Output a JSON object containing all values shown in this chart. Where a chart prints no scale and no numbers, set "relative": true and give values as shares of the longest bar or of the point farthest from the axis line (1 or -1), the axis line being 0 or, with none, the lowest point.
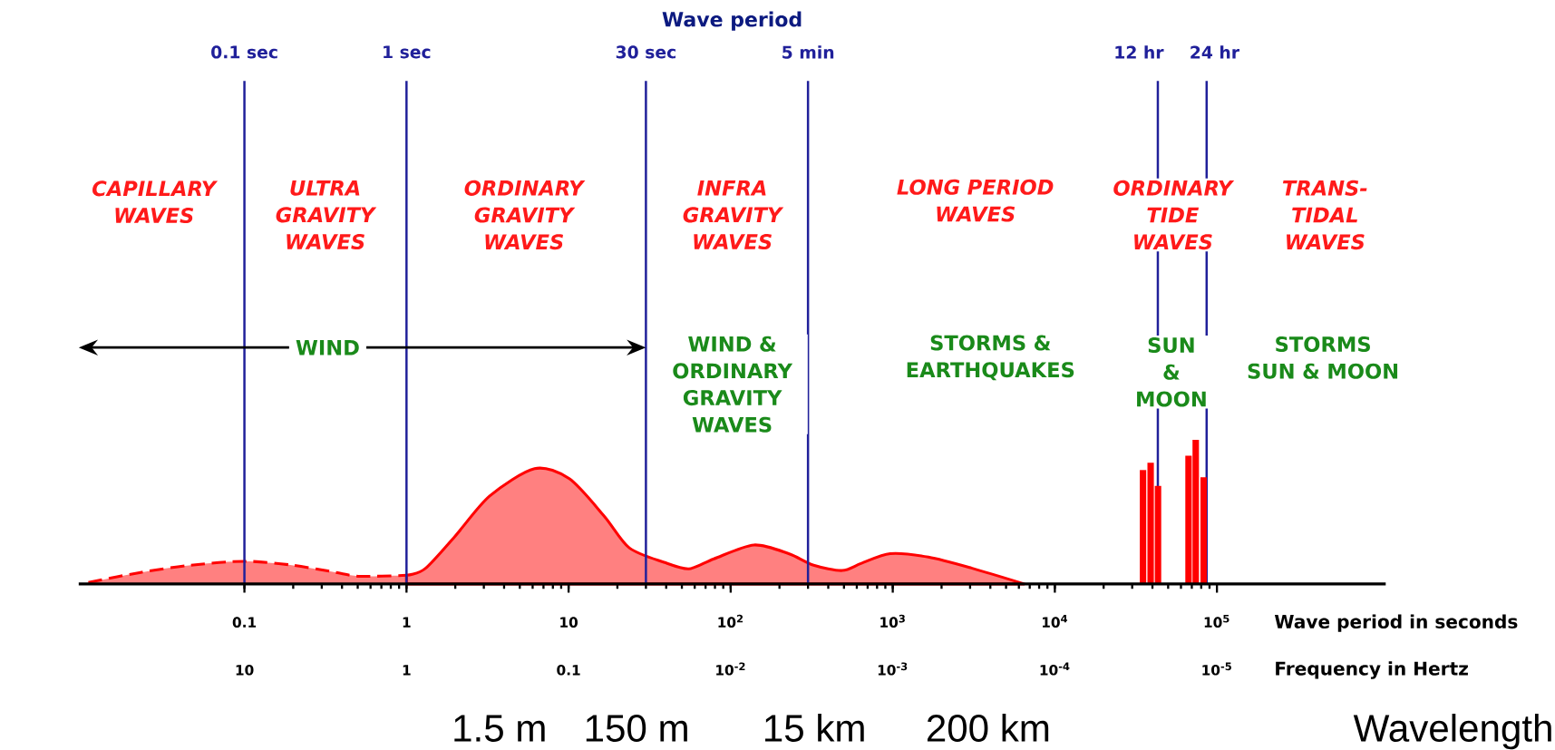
{
  "chart_data": {
    "type": "area",
    "title": "Wave period",
    "xlabel": "Wave period in seconds",
    "relative": true,
    "log": "x",
    "xlim": [
      0.0095,
      1100000
    ],
    "xticks": [
      0.1,
      1,
      10,
      {
        "value": 100,
        "label": "10$^{2}$"
      },
      {
        "value": 1000,
        "label": "10$^{3}$"
      },
      {
        "value": 10000,
        "label": "10$^{4}$"
      },
      {
        "value": 100000,
        "label": "10$^{5}$"
      }
    ],
    "ref_lines": [
      {
        "axis": "x",
        "value": 0.1,
        "label": "0.1 sec",
        "color": "#20209a"
      },
      {
        "axis": "x",
        "value": 1,
        "label": "1 sec",
        "color": "#20209a"
      },
      {
        "axis": "x",
        "value": 30,
        "label": "30 sec",
        "color": "#20209a"
      },
      {
        "axis": "x",
        "value": 300,
        "label": "5 min",
        "color": "#20209a"
      },
      {
        "axis": "x",
        "value": 43200,
        "label": "12 hr",
        "color": "#20209a"
      },
      {
        "axis": "x",
        "value": 86400,
        "label": "24 hr",
        "color": "#20209a"
      }
    ],
    "series": [
      {
        "color": "#ff0000",
        "line_style": "dashed",
        "x": [
          0.0109,
          0.0229,
          0.0466,
          0.1,
          0.192,
          0.338,
          0.516,
          1.0
        ],
        "values": [
          0.01,
          0.08,
          0.13,
          0.157,
          0.132,
          0.087,
          0.053,
          0.06
        ]
      },
      {
        "color": "#ff0000",
        "line_style": "solid",
        "x": [
          1.0,
          1.3,
          1.99,
          3.26,
          6.17,
          10.1,
          16.6,
          23.7,
          38.8,
          55.3,
          78.8,
          139,
          228,
          325,
          488,
          641,
          964,
          1660,
          3060,
          6470
        ],
        "values": [
          0.06,
          0.105,
          0.33,
          0.61,
          0.8,
          0.73,
          0.47,
          0.25,
          0.15,
          0.105,
          0.174,
          0.27,
          0.21,
          0.13,
          0.093,
          0.143,
          0.21,
          0.186,
          0.11,
          0
        ]
      },
      {
        "type": "bar",
        "color": "#ff0000",
        "x": [
          35000,
          39000,
          43300,
          66800,
          74000,
          82800
        ],
        "values": [
          0.79,
          0.84,
          0.68,
          0.89,
          1.0,
          0.74
        ]
      }
    ],
    "annotations": [
      "CAPILLARY\nWAVES",
      "ULTRA\nGRAVITY\nWAVES",
      "ORDINARY\nGRAVITY\nWAVES",
      "INFRA\nGRAVITY\nWAVES",
      "LONG PERIOD\nWAVES",
      "ORDINARY\nTIDE\nWAVES",
      "TRANS-\nTIDAL\nWAVES",
      "WIND",
      "WIND &\nORDINARY\nGRAVITY\nWAVES",
      "STORMS &\nEARTHQUAKES",
      "SUN\n&\nMOON",
      "STORMS\nSUN & MOON",
      "1.5 m",
      "150 m",
      "15 km",
      "200 km",
      "Wavelength",
      "10",
      "1",
      "0.1",
      "10$^{-2}$",
      "10$^{-3}$",
      "10$^{-4}$",
      "10$^{-5}$",
      "Frequency in Hertz"
    ]
  }
}
